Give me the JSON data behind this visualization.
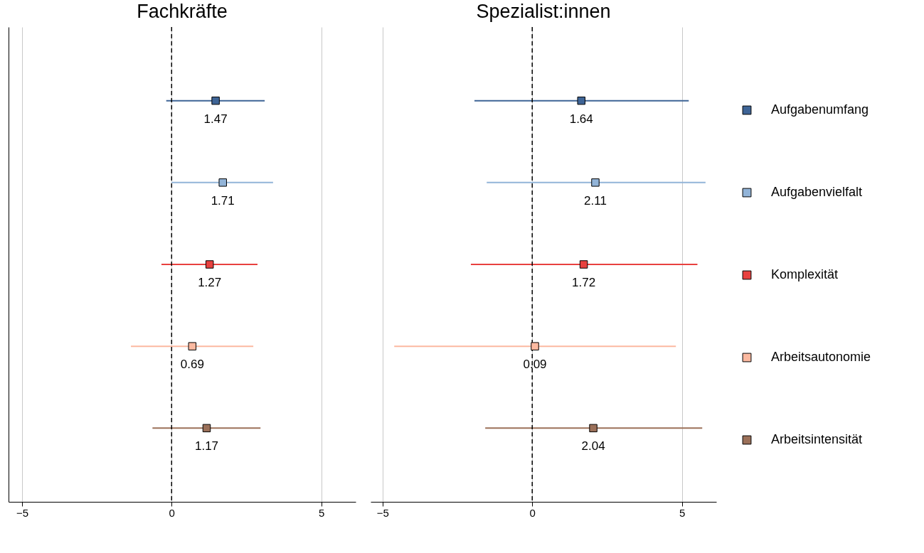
{
  "chart_data": [
    {
      "type": "scatter",
      "title": "Fachkräfte",
      "orientation": "horizontal",
      "categories": [
        null,
        null,
        null,
        null,
        null
      ],
      "xlim": [
        -5.45,
        6.15
      ],
      "xticks": [
        -5,
        0,
        5
      ],
      "grid": "x",
      "tick_labels": "x",
      "marker": "square",
      "data_labels": true,
      "legend": false,
      "ref_lines": [
        {
          "axis": "x",
          "value": 0,
          "line_style": "dashed",
          "color": "#000000"
        }
      ],
      "series": [
        {
          "color": "#3e6496",
          "values": [
            1.47,
            null,
            null,
            null,
            null
          ],
          "errors": [
            [
              -0.18,
              3.11
            ],
            null,
            null,
            null,
            null
          ]
        },
        {
          "color": "#92b4d8",
          "values": [
            null,
            1.71,
            null,
            null,
            null
          ],
          "errors": [
            null,
            [
              0.0,
              3.39
            ],
            null,
            null,
            null
          ]
        },
        {
          "color": "#e8413f",
          "values": [
            null,
            null,
            1.27,
            null,
            null
          ],
          "errors": [
            null,
            null,
            [
              -0.34,
              2.87
            ],
            null,
            null
          ]
        },
        {
          "color": "#fcb9a0",
          "values": [
            null,
            null,
            null,
            0.69,
            null
          ],
          "errors": [
            null,
            null,
            null,
            [
              -1.36,
              2.73
            ],
            null
          ]
        },
        {
          "color": "#9b7059",
          "values": [
            null,
            null,
            null,
            null,
            1.17
          ],
          "errors": [
            null,
            null,
            null,
            null,
            [
              -0.64,
              2.97
            ]
          ]
        }
      ]
    },
    {
      "type": "scatter",
      "title": "Spezialist:innen",
      "orientation": "horizontal",
      "categories": [
        null,
        null,
        null,
        null,
        null
      ],
      "xlim": [
        -5.4,
        6.15
      ],
      "xticks": [
        -5,
        0,
        5
      ],
      "grid": "x",
      "tick_labels": "x",
      "marker": "square",
      "data_labels": true,
      "legend": "right",
      "ref_lines": [
        {
          "axis": "x",
          "value": 0,
          "line_style": "dashed",
          "color": "#000000"
        }
      ],
      "series": [
        {
          "name": "Aufgabenumfang",
          "color": "#3e6496",
          "values": [
            1.64,
            null,
            null,
            null,
            null
          ],
          "errors": [
            [
              -1.93,
              5.23
            ],
            null,
            null,
            null,
            null
          ]
        },
        {
          "name": "Aufgabenvielfalt",
          "color": "#92b4d8",
          "values": [
            null,
            2.11,
            null,
            null,
            null
          ],
          "errors": [
            null,
            [
              -1.52,
              5.79
            ],
            null,
            null,
            null
          ]
        },
        {
          "name": "Komplexität",
          "color": "#e8413f",
          "values": [
            null,
            null,
            1.72,
            null,
            null
          ],
          "errors": [
            null,
            null,
            [
              -2.05,
              5.52
            ],
            null,
            null
          ]
        },
        {
          "name": "Arbeitsautonomie",
          "color": "#fcb9a0",
          "values": [
            null,
            null,
            null,
            0.09,
            null
          ],
          "errors": [
            null,
            null,
            null,
            [
              -4.61,
              4.8
            ],
            null
          ]
        },
        {
          "name": "Arbeitsintensität",
          "color": "#9b7059",
          "values": [
            null,
            null,
            null,
            null,
            2.04
          ],
          "errors": [
            null,
            null,
            null,
            null,
            [
              -1.57,
              5.68
            ]
          ]
        }
      ]
    }
  ]
}
